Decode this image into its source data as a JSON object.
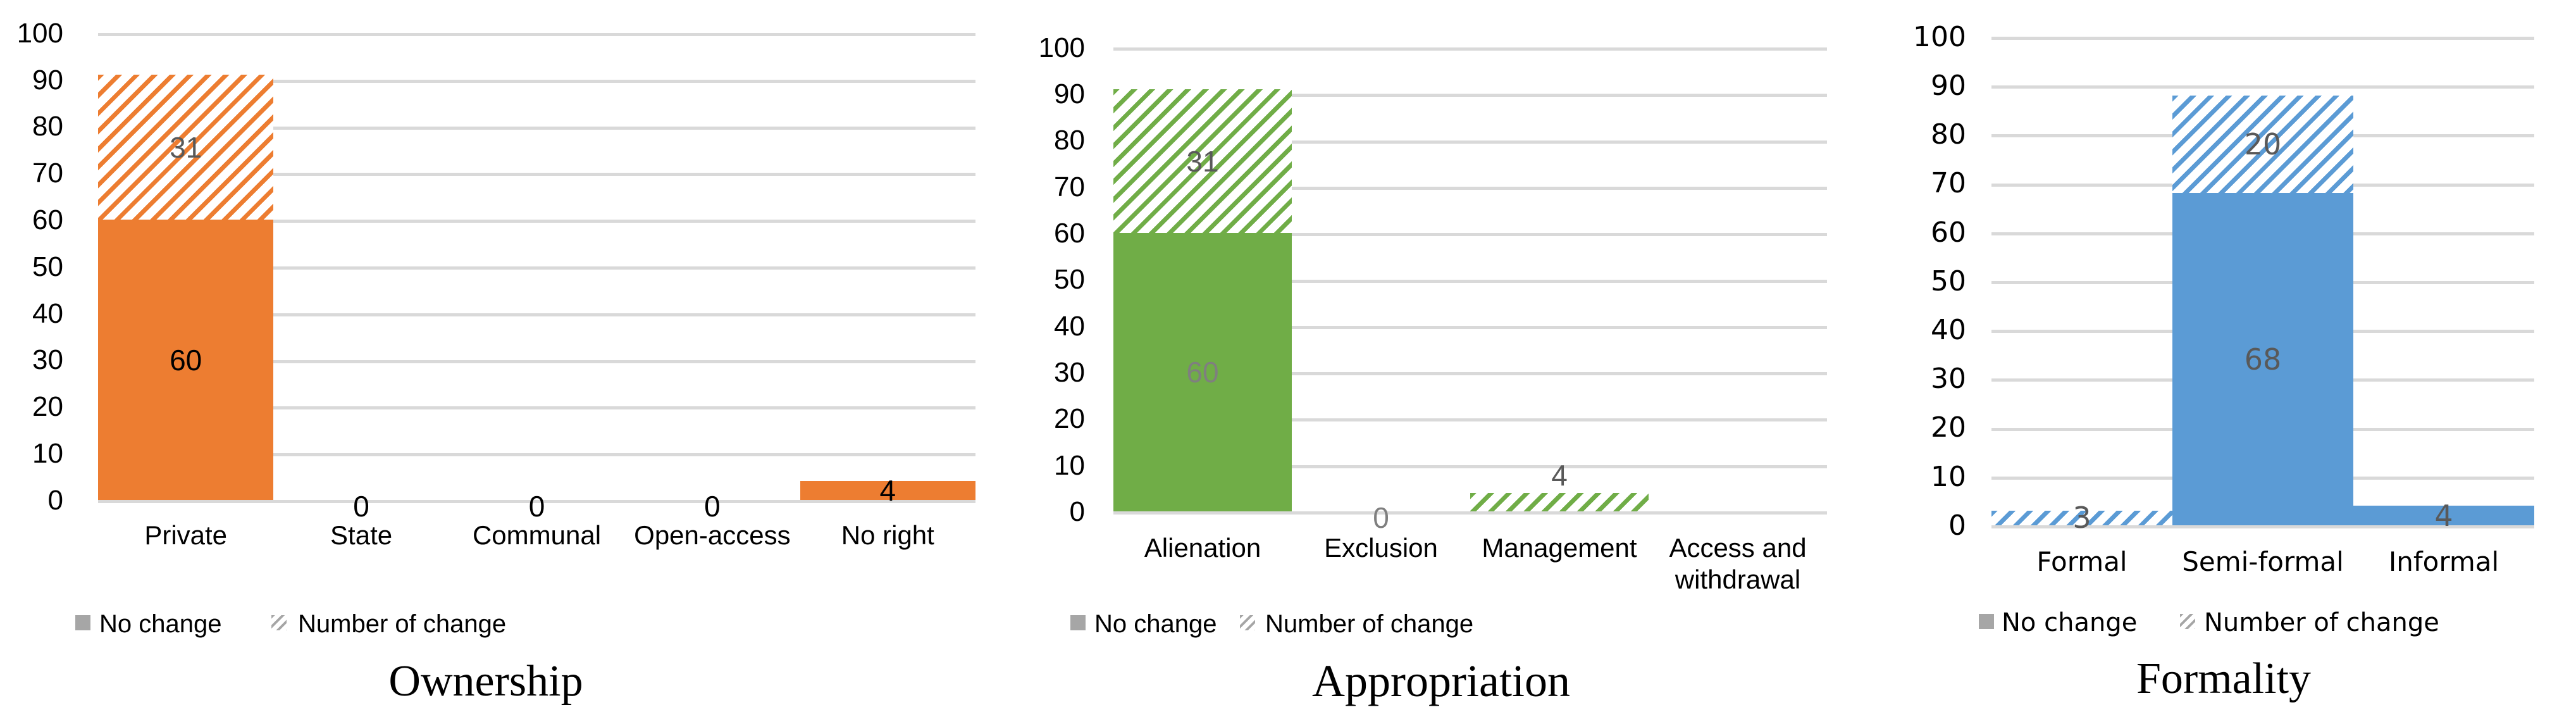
{
  "figure": {
    "background": "#FFFFFF",
    "grid_color": "#D9D9D9",
    "legend_marker_color": "#A6A6A6"
  },
  "chart_data": [
    {
      "type": "bar",
      "stacked": true,
      "title": "Ownership",
      "accent_color": "#ED7D31",
      "grid_color": "#D9D9D9",
      "ylim": [
        0,
        100
      ],
      "yticks": [
        100,
        90,
        80,
        70,
        60,
        50,
        40,
        30,
        20,
        10,
        0
      ],
      "grid": true,
      "legend_position": "bottom-left",
      "legend": [
        {
          "label": "No change",
          "marker": "solid-gray-swatch"
        },
        {
          "label": "Number of change",
          "marker": "hatch-gray-swatch"
        }
      ],
      "categories": [
        "Private",
        "State",
        "Communal",
        "Open-access",
        "No right"
      ],
      "series": [
        {
          "name": "No change",
          "fill": "solid",
          "points": [
            {
              "value": 60,
              "label": "60",
              "label_color": "#000000",
              "label_place": "center"
            },
            {
              "value": 0,
              "label": "0",
              "label_color": "#000000",
              "label_place": "base"
            },
            {
              "value": 0,
              "label": "0",
              "label_color": "#000000",
              "label_place": "base"
            },
            {
              "value": 0,
              "label": "0",
              "label_color": "#000000",
              "label_place": "base"
            },
            {
              "value": 4,
              "label": "4",
              "label_color": "#000000",
              "label_place": "center"
            }
          ]
        },
        {
          "name": "Number of change",
          "fill": "hatch",
          "points": [
            {
              "value": 31,
              "label": "31",
              "label_color": "#595959",
              "label_place": "center"
            },
            {
              "value": 0,
              "label": null
            },
            {
              "value": 0,
              "label": null
            },
            {
              "value": 0,
              "label": null
            },
            {
              "value": 0,
              "label": null
            }
          ]
        }
      ]
    },
    {
      "type": "bar",
      "stacked": true,
      "title": "Appropriation",
      "accent_color": "#70AD47",
      "grid_color": "#D9D9D9",
      "ylim": [
        0,
        100
      ],
      "yticks": [
        100,
        90,
        80,
        70,
        60,
        50,
        40,
        30,
        20,
        10,
        0
      ],
      "grid": true,
      "legend_position": "bottom-left",
      "legend": [
        {
          "label": "No change",
          "marker": "solid-gray-swatch"
        },
        {
          "label": "Number of change",
          "marker": "hatch-gray-swatch"
        }
      ],
      "categories": [
        "Alienation",
        "Exclusion",
        "Management",
        "Access and\nwithdrawal"
      ],
      "series": [
        {
          "name": "No change",
          "fill": "solid",
          "points": [
            {
              "value": 60,
              "label": "60",
              "label_color": "#7F7F7F",
              "label_place": "center"
            },
            {
              "value": 0,
              "label": "0",
              "label_color": "#7F7F7F",
              "label_place": "base"
            },
            {
              "value": 0,
              "label": null
            },
            {
              "value": 0,
              "label": null
            }
          ]
        },
        {
          "name": "Number of change",
          "fill": "hatch",
          "points": [
            {
              "value": 31,
              "label": "31",
              "label_color": "#595959",
              "label_place": "center"
            },
            {
              "value": 0,
              "label": null
            },
            {
              "value": 4,
              "label": "4",
              "label_color": "#595959",
              "label_place": "above"
            },
            {
              "value": 0,
              "label": null
            }
          ]
        }
      ]
    },
    {
      "type": "bar",
      "stacked": true,
      "title": "Formality",
      "accent_color": "#5B9BD5",
      "grid_color": "#D9D9D9",
      "ylim": [
        0,
        100
      ],
      "yticks": [
        100,
        90,
        80,
        70,
        60,
        50,
        40,
        30,
        20,
        10,
        0
      ],
      "grid": true,
      "legend_position": "bottom-left",
      "legend": [
        {
          "label": "No change",
          "marker": "solid-gray-swatch"
        },
        {
          "label": "Number of change",
          "marker": "hatch-gray-swatch"
        }
      ],
      "categories": [
        "Formal",
        "Semi-formal",
        "Informal"
      ],
      "series": [
        {
          "name": "No change",
          "fill": "solid",
          "points": [
            {
              "value": 0,
              "label": null
            },
            {
              "value": 68,
              "label": "68",
              "label_color": "#595959",
              "label_place": "center"
            },
            {
              "value": 4,
              "label": "4",
              "label_color": "#595959",
              "label_place": "center"
            }
          ]
        },
        {
          "name": "Number of change",
          "fill": "hatch",
          "points": [
            {
              "value": 3,
              "label": "3",
              "label_color": "#595959",
              "label_place": "center"
            },
            {
              "value": 20,
              "label": "20",
              "label_color": "#595959",
              "label_place": "center"
            },
            {
              "value": 0,
              "label": null
            }
          ]
        }
      ]
    }
  ]
}
